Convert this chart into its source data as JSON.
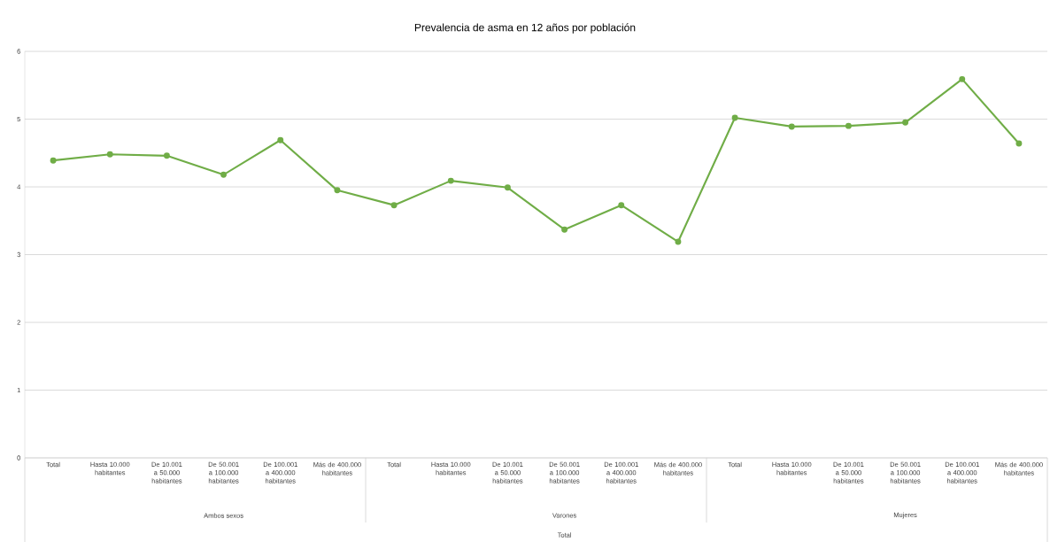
{
  "chart_data": {
    "type": "line",
    "title": "Prevalencia  de asma  en 12 años por  población",
    "categories": [
      "Total",
      "Hasta 10.000 habitantes",
      "De 10.001 a 50.000 habitantes",
      "De 50.001 a 100.000 habitantes",
      "De 100.001 a 400.000 habitantes",
      "Más de 400.000 habitantes",
      "Total",
      "Hasta 10.000 habitantes",
      "De 10.001 a 50.000 habitantes",
      "De 50.001 a 100.000 habitantes",
      "De 100.001 a 400.000 habitantes",
      "Más de 400.000 habitantes",
      "Total",
      "Hasta 10.000 habitantes",
      "De 10.001 a 50.000 habitantes",
      "De 50.001 a 100.000 habitantes",
      "De 100.001 a 400.000 habitantes",
      "Más de 400.000 habitantes"
    ],
    "series": [
      {
        "color": "#70ad47",
        "values": [
          4.39,
          4.48,
          4.46,
          4.18,
          4.69,
          3.95,
          3.73,
          4.09,
          3.99,
          3.37,
          3.73,
          3.19,
          5.02,
          4.89,
          4.9,
          4.95,
          5.59,
          4.64
        ]
      }
    ],
    "annotations": [
      "Ambos sexos",
      "Varones",
      "Mujeres",
      "Total"
    ],
    "ylim": [
      0,
      6
    ],
    "yticks": [
      0,
      1,
      2,
      3,
      4,
      5,
      6
    ],
    "grid": "y",
    "marker": "circle",
    "line_style": "solid"
  }
}
